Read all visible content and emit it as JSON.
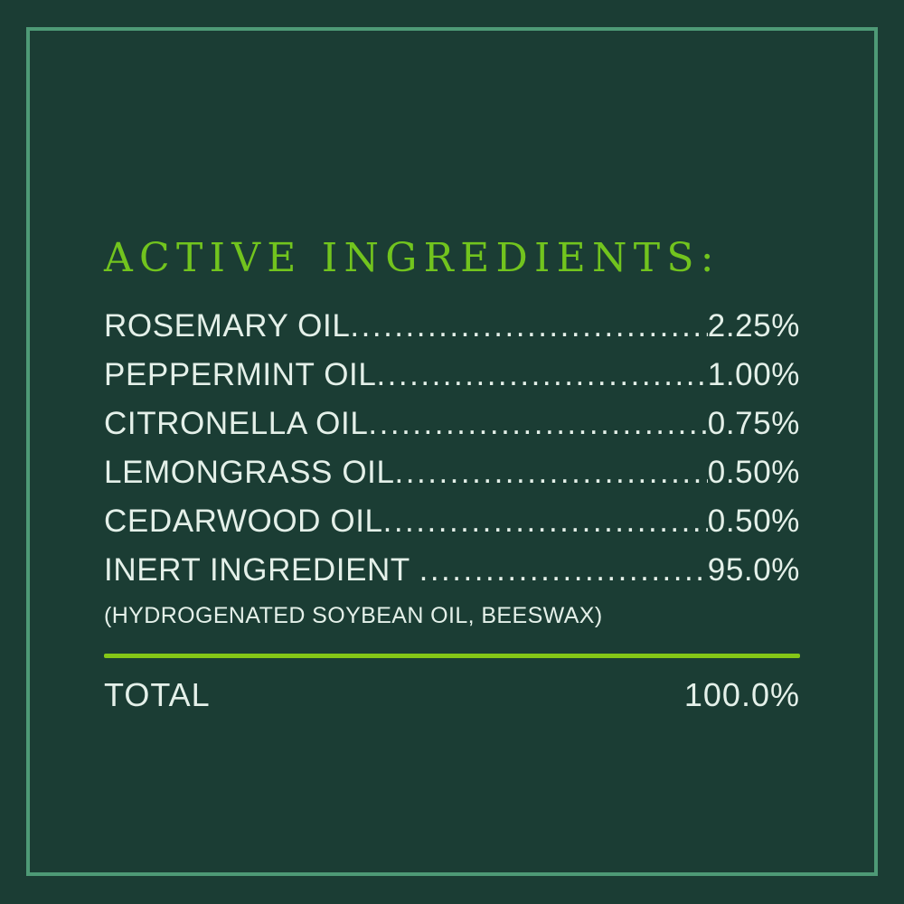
{
  "panel": {
    "title": "ACTIVE INGREDIENTS:",
    "rows": [
      {
        "label": "ROSEMARY OIL",
        "value": "2.25%"
      },
      {
        "label": "PEPPERMINT OIL",
        "value": "1.00%"
      },
      {
        "label": "CITRONELLA OIL",
        "value": "0.75%"
      },
      {
        "label": "LEMONGRASS OIL",
        "value": "0.50%"
      },
      {
        "label": "CEDARWOOD OIL",
        "value": "0.50%"
      },
      {
        "label": "INERT INGREDIENT ",
        "value": "95.0%"
      }
    ],
    "inert_note": "(HYDROGENATED SOYBEAN OIL, BEESWAX)",
    "total_label": "TOTAL",
    "total_value": "100.0%",
    "dot_char": "."
  },
  "colors": {
    "background": "#1B3D34",
    "border": "#4E9A76",
    "title": "#72C41E",
    "divider": "#85C717",
    "text": "#E4F0E9"
  }
}
